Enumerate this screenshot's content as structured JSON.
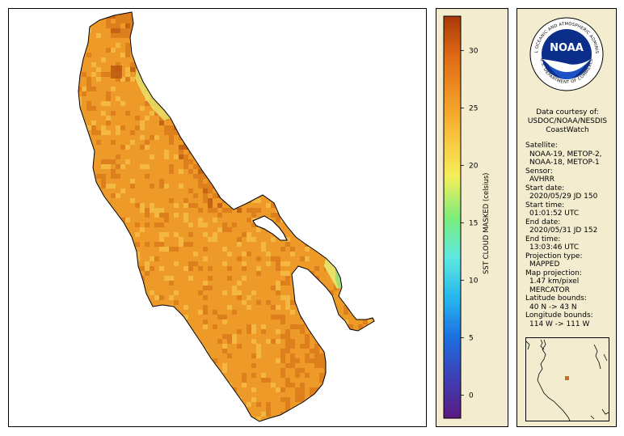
{
  "map": {
    "variable": "SST cloud masked",
    "colors": {
      "sst_main": "#ee9a28",
      "sst_warm": "#d8761a",
      "sst_hot": "#b8520f",
      "sst_cool": "#f6c04a",
      "sst_edge": "#e9e06a",
      "sst_coolest": "#9fdc73",
      "outline": "#000000"
    }
  },
  "colorbar": {
    "label": "SST CLOUD MASKED (celsius)",
    "ticks": [
      "0",
      "5",
      "10",
      "15",
      "20",
      "25",
      "30"
    ],
    "min": -2,
    "max": 33,
    "gradient": [
      "#5b1a82",
      "#3f3fb5",
      "#1d6fe0",
      "#27b7ee",
      "#5ee8e0",
      "#7ded7a",
      "#f5ef5c",
      "#f8c43c",
      "#f09525",
      "#de6a16",
      "#a8380a"
    ]
  },
  "info": {
    "logo_text": "NOAA",
    "logo_ring_top": "NATIONAL OCEANIC AND ATMOSPHERIC ADMINISTRATION",
    "logo_ring_bottom": "U.S. DEPARTMENT OF COMMERCE",
    "courtesy": [
      "Data courtesy of:",
      "USDOC/NOAA/NESDIS",
      "CoastWatch"
    ],
    "fields": [
      {
        "label": "Satellite:",
        "values": [
          "NOAA-19, METOP-2,",
          "NOAA-18, METOP-1"
        ]
      },
      {
        "label": "Sensor:",
        "values": [
          "AVHRR"
        ]
      },
      {
        "label": "Start date:",
        "values": [
          "2020/05/29 JD 150"
        ]
      },
      {
        "label": "Start time:",
        "values": [
          "01:01:52 UTC"
        ]
      },
      {
        "label": "End date:",
        "values": [
          "2020/05/31 JD 152"
        ]
      },
      {
        "label": "End time:",
        "values": [
          "13:03:46 UTC"
        ]
      },
      {
        "label": "Projection type:",
        "values": [
          "MAPPED"
        ]
      },
      {
        "label": "Map projection:",
        "values": [
          "1.47 km/pixel",
          "MERCATOR"
        ]
      },
      {
        "label": "Latitude bounds:",
        "values": [
          "40 N -> 43 N"
        ]
      },
      {
        "label": "Longitude bounds:",
        "values": [
          "114 W -> 111 W"
        ]
      }
    ],
    "inset_marker_color": "#c8702a"
  }
}
